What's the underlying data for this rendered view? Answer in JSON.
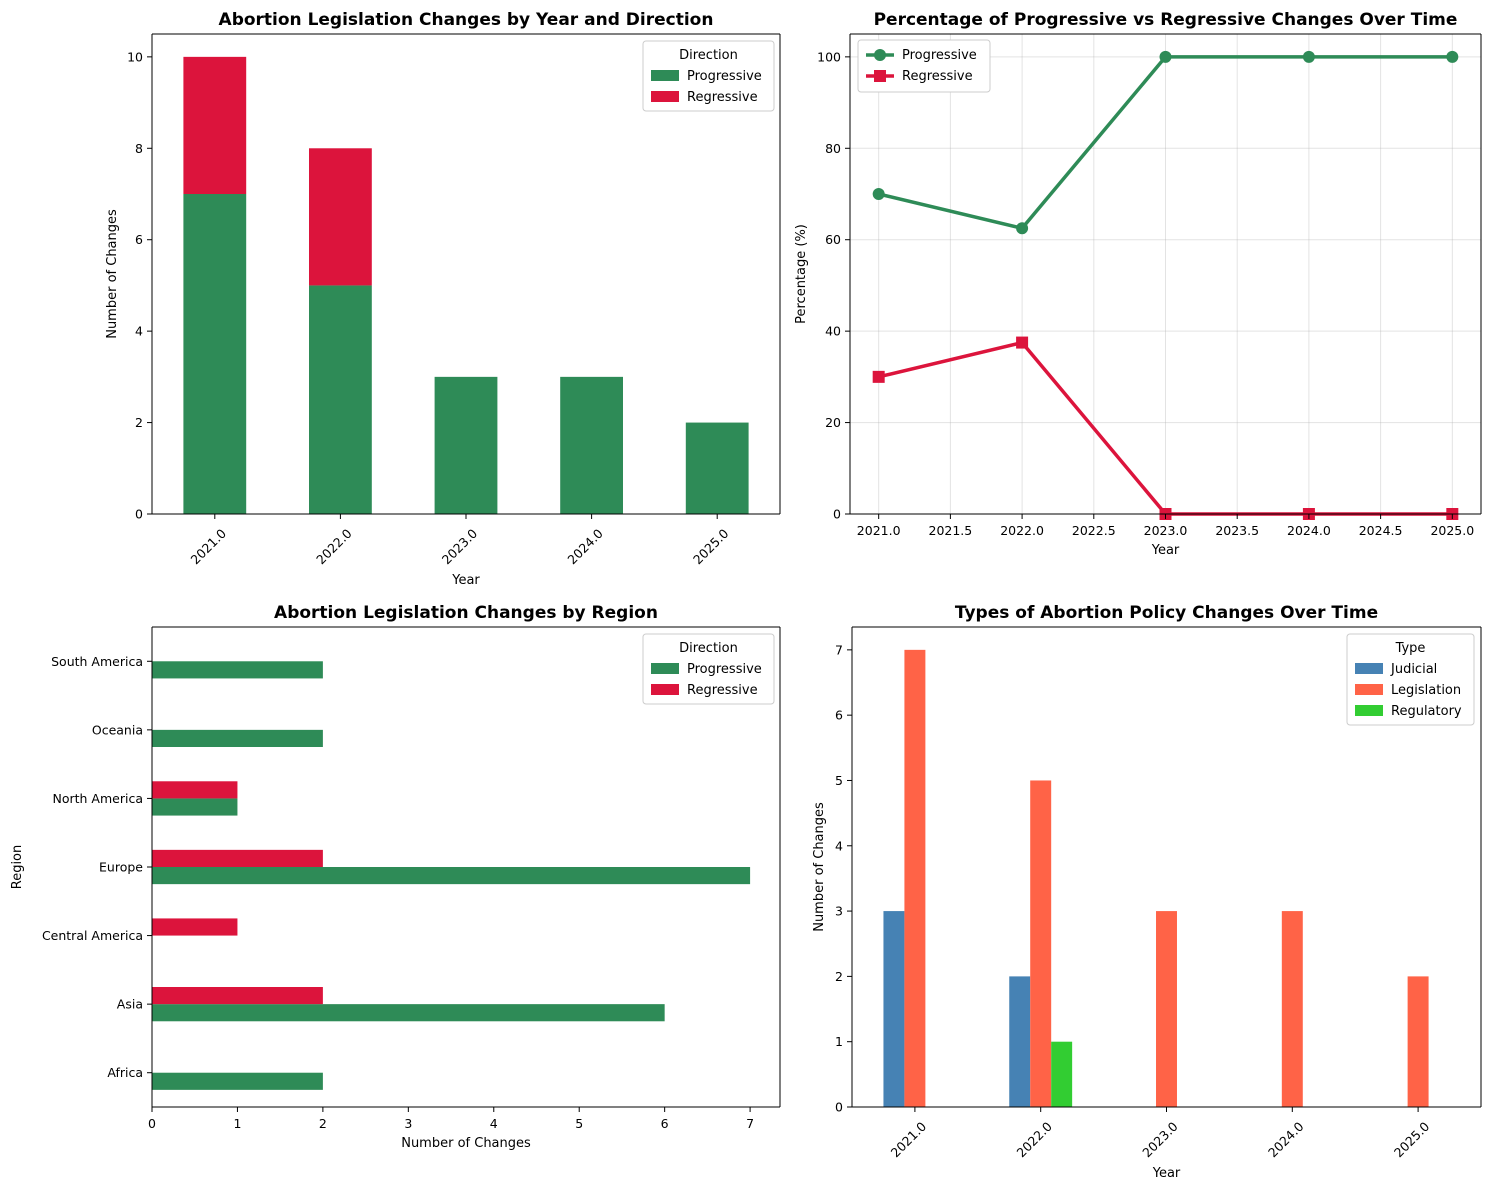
{
  "colors": {
    "progressive": "#2e8b57",
    "regressive": "#dc143c",
    "judicial": "#4682b4",
    "legislation": "#ff6347",
    "regulatory": "#32cd32"
  },
  "chart_data": [
    {
      "type": "bar",
      "stacked": true,
      "title": "Abortion Legislation Changes by Year and Direction",
      "xlabel": "Year",
      "ylabel": "Number of Changes",
      "categories": [
        "2021.0",
        "2022.0",
        "2023.0",
        "2024.0",
        "2025.0"
      ],
      "series": [
        {
          "name": "Progressive",
          "values": [
            7,
            5,
            3,
            3,
            2
          ]
        },
        {
          "name": "Regressive",
          "values": [
            3,
            3,
            0,
            0,
            0
          ]
        }
      ],
      "ylim": [
        0,
        10.5
      ],
      "yticks": [
        0,
        2,
        4,
        6,
        8,
        10
      ],
      "legend_title": "Direction",
      "legend_position": "top-right"
    },
    {
      "type": "line",
      "title": "Percentage of Progressive vs Regressive Changes Over Time",
      "xlabel": "Year",
      "ylabel": "Percentage (%)",
      "x": [
        2021,
        2022,
        2023,
        2024,
        2025
      ],
      "series": [
        {
          "name": "Progressive",
          "values": [
            70.0,
            62.5,
            100,
            100,
            100
          ]
        },
        {
          "name": "Regressive",
          "values": [
            30.0,
            37.5,
            0,
            0,
            0
          ]
        }
      ],
      "xlim": [
        2020.8,
        2025.2
      ],
      "ylim": [
        0,
        105
      ],
      "xticks": [
        "2021.0",
        "2021.5",
        "2022.0",
        "2022.5",
        "2023.0",
        "2023.5",
        "2024.0",
        "2024.5",
        "2025.0"
      ],
      "yticks": [
        0,
        20,
        40,
        60,
        80,
        100
      ],
      "grid": true,
      "legend_position": "top-left"
    },
    {
      "type": "bar",
      "orientation": "horizontal",
      "title": "Abortion Legislation Changes by Region",
      "xlabel": "Number of Changes",
      "ylabel": "Region",
      "categories": [
        "Africa",
        "Asia",
        "Central America",
        "Europe",
        "North America",
        "Oceania",
        "South America"
      ],
      "series": [
        {
          "name": "Progressive",
          "values": [
            2,
            6,
            0,
            7,
            1,
            2,
            2
          ]
        },
        {
          "name": "Regressive",
          "values": [
            0,
            2,
            1,
            2,
            1,
            0,
            0
          ]
        }
      ],
      "xlim": [
        0,
        7.35
      ],
      "xticks": [
        0,
        1,
        2,
        3,
        4,
        5,
        6,
        7
      ],
      "legend_title": "Direction",
      "legend_position": "top-right"
    },
    {
      "type": "bar",
      "title": "Types of Abortion Policy Changes Over Time",
      "xlabel": "Year",
      "ylabel": "Number of Changes",
      "categories": [
        "2021.0",
        "2022.0",
        "2023.0",
        "2024.0",
        "2025.0"
      ],
      "series": [
        {
          "name": "Judicial",
          "values": [
            3,
            2,
            0,
            0,
            0
          ]
        },
        {
          "name": "Legislation",
          "values": [
            7,
            5,
            3,
            3,
            2
          ]
        },
        {
          "name": "Regulatory",
          "values": [
            0,
            1,
            0,
            0,
            0
          ]
        }
      ],
      "ylim": [
        0,
        7.35
      ],
      "yticks": [
        0,
        1,
        2,
        3,
        4,
        5,
        6,
        7
      ],
      "legend_title": "Type",
      "legend_position": "top-right"
    }
  ]
}
